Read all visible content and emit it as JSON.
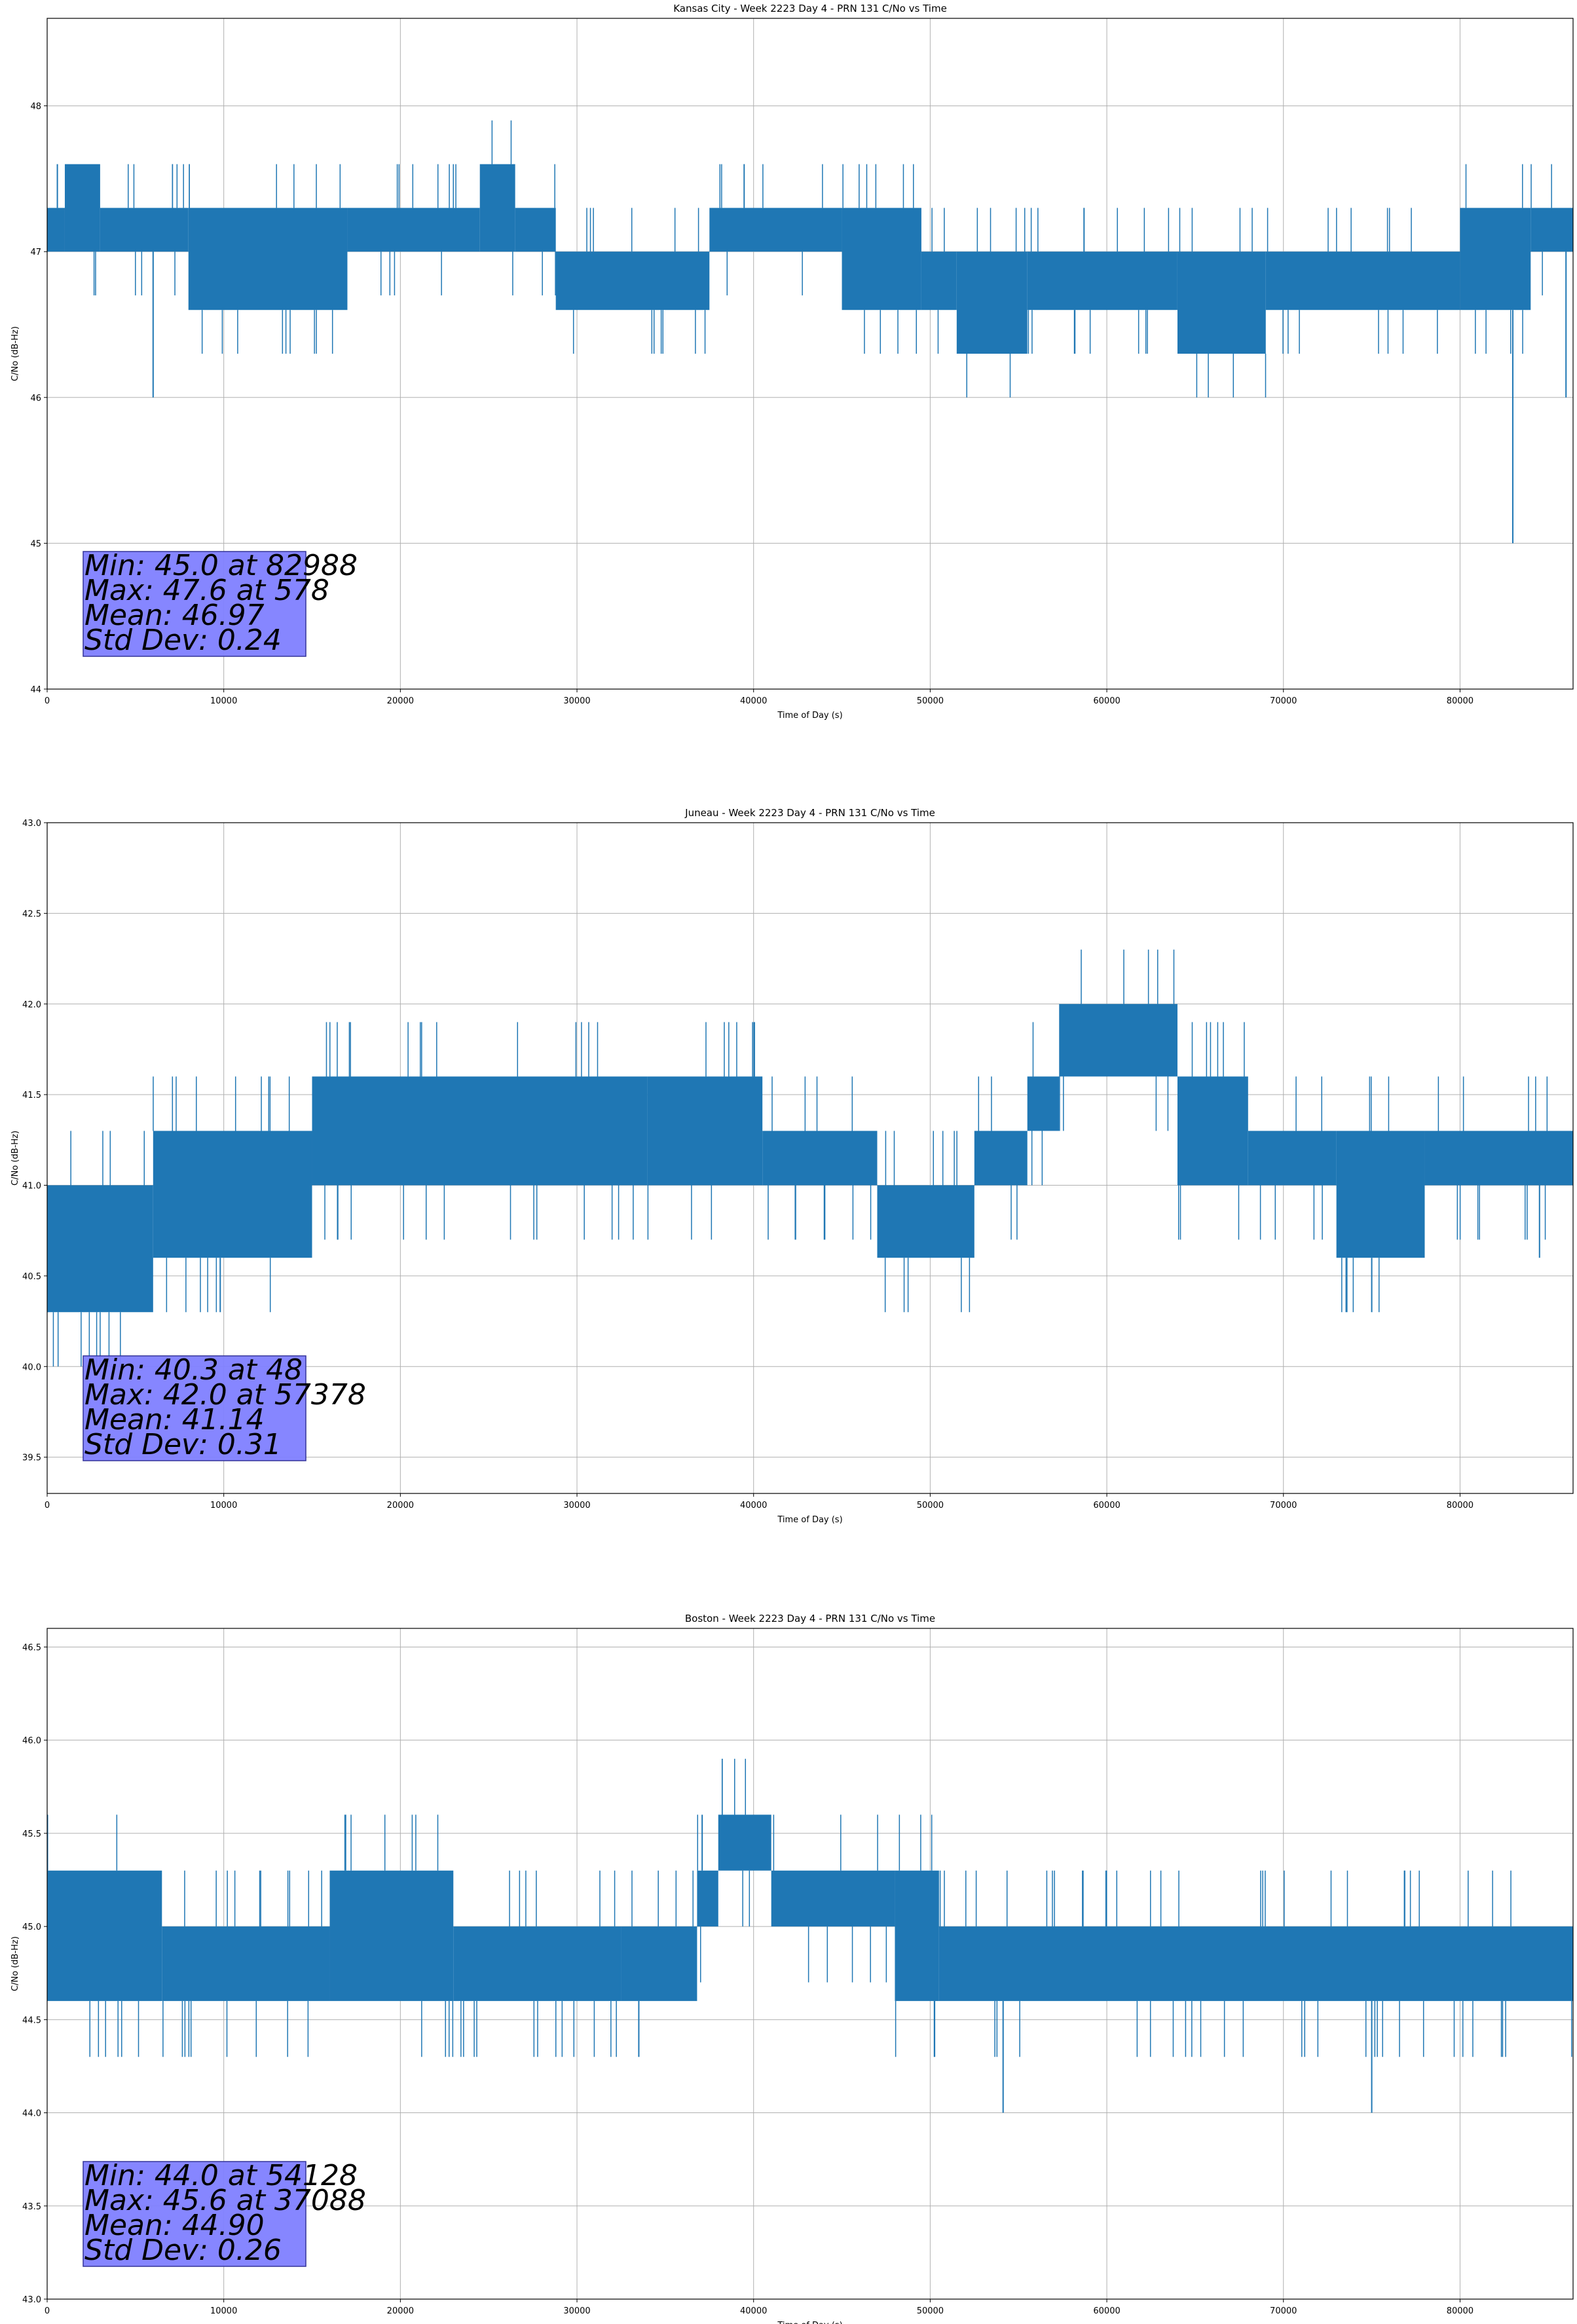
{
  "chart_data": [
    {
      "type": "line",
      "title": "Kansas City - Week 2223 Day 4 - PRN 131 C/No vs Time",
      "xlabel": "Time of Day (s)",
      "ylabel": "C/No (dB-Hz)",
      "xlim": [
        0,
        86400
      ],
      "ylim": [
        44,
        48.6
      ],
      "xticks": [
        0,
        10000,
        20000,
        30000,
        40000,
        50000,
        60000,
        70000,
        80000
      ],
      "yticks": [
        44,
        45,
        46,
        47,
        48
      ],
      "ytick_labels": [
        "44",
        "45",
        "46",
        "47",
        "48"
      ],
      "grid": true,
      "series_color": "#1f77b4",
      "stats_box_color": "#8080ff",
      "stats": [
        "Min: 45.0 at 82988",
        "Max: 47.6 at 578",
        "Mean: 46.97",
        "Std Dev: 0.24"
      ],
      "band_segments": [
        {
          "x": [
            0,
            1000
          ],
          "low": 47.0,
          "high": 47.3
        },
        {
          "x": [
            1000,
            3000
          ],
          "low": 47.0,
          "high": 47.6
        },
        {
          "x": [
            3000,
            8000
          ],
          "low": 47.0,
          "high": 47.3
        },
        {
          "x": [
            8000,
            17000
          ],
          "low": 46.6,
          "high": 47.3
        },
        {
          "x": [
            17000,
            24500
          ],
          "low": 47.0,
          "high": 47.3
        },
        {
          "x": [
            24500,
            26500
          ],
          "low": 47.0,
          "high": 47.6
        },
        {
          "x": [
            26500,
            28800
          ],
          "low": 47.0,
          "high": 47.3
        },
        {
          "x": [
            28800,
            37500
          ],
          "low": 46.6,
          "high": 47.0
        },
        {
          "x": [
            37500,
            45000
          ],
          "low": 47.0,
          "high": 47.3
        },
        {
          "x": [
            45000,
            49500
          ],
          "low": 46.6,
          "high": 47.3
        },
        {
          "x": [
            49500,
            51500
          ],
          "low": 46.6,
          "high": 47.0
        },
        {
          "x": [
            51500,
            55500
          ],
          "low": 46.3,
          "high": 47.0
        },
        {
          "x": [
            55500,
            64000
          ],
          "low": 46.6,
          "high": 47.0
        },
        {
          "x": [
            64000,
            69000
          ],
          "low": 46.3,
          "high": 47.0
        },
        {
          "x": [
            69000,
            80000
          ],
          "low": 46.6,
          "high": 47.0
        },
        {
          "x": [
            80000,
            84000
          ],
          "low": 46.6,
          "high": 47.3
        },
        {
          "x": [
            84000,
            86400
          ],
          "low": 47.0,
          "high": 47.3
        }
      ],
      "spikes": [
        {
          "x": 578,
          "y": 47.6
        },
        {
          "x": 6000,
          "y": 46.0
        },
        {
          "x": 82988,
          "y": 45.0
        },
        {
          "x": 86000,
          "y": 46.0
        }
      ]
    },
    {
      "type": "line",
      "title": "Juneau - Week 2223 Day 4 - PRN 131 C/No vs Time",
      "xlabel": "Time of Day (s)",
      "ylabel": "C/No (dB-Hz)",
      "xlim": [
        0,
        86400
      ],
      "ylim": [
        39.3,
        43.0
      ],
      "xticks": [
        0,
        10000,
        20000,
        30000,
        40000,
        50000,
        60000,
        70000,
        80000
      ],
      "yticks": [
        39.5,
        40.0,
        40.5,
        41.0,
        41.5,
        42.0,
        42.5,
        43.0
      ],
      "ytick_labels": [
        "39.5",
        "40.0",
        "40.5",
        "41.0",
        "41.5",
        "42.0",
        "42.5",
        "43.0"
      ],
      "grid": true,
      "series_color": "#1f77b4",
      "stats_box_color": "#8080ff",
      "stats": [
        "Min: 40.3 at 48",
        "Max: 42.0 at 57378",
        "Mean: 41.14",
        "Std Dev: 0.31"
      ],
      "band_segments": [
        {
          "x": [
            0,
            6000
          ],
          "low": 40.3,
          "high": 41.0
        },
        {
          "x": [
            6000,
            15000
          ],
          "low": 40.6,
          "high": 41.3
        },
        {
          "x": [
            15000,
            34000
          ],
          "low": 41.0,
          "high": 41.6
        },
        {
          "x": [
            34000,
            40500
          ],
          "low": 41.0,
          "high": 41.6
        },
        {
          "x": [
            40500,
            47000
          ],
          "low": 41.0,
          "high": 41.3
        },
        {
          "x": [
            47000,
            52500
          ],
          "low": 40.6,
          "high": 41.0
        },
        {
          "x": [
            52500,
            55500
          ],
          "low": 41.0,
          "high": 41.3
        },
        {
          "x": [
            55500,
            57300
          ],
          "low": 41.3,
          "high": 41.6
        },
        {
          "x": [
            57300,
            64000
          ],
          "low": 41.6,
          "high": 42.0
        },
        {
          "x": [
            64000,
            68000
          ],
          "low": 41.0,
          "high": 41.6
        },
        {
          "x": [
            68000,
            73000
          ],
          "low": 41.0,
          "high": 41.3
        },
        {
          "x": [
            73000,
            78000
          ],
          "low": 40.6,
          "high": 41.3
        },
        {
          "x": [
            78000,
            86400
          ],
          "low": 41.0,
          "high": 41.3
        }
      ],
      "spikes": [
        {
          "x": 48,
          "y": 40.3
        },
        {
          "x": 9800,
          "y": 40.3
        },
        {
          "x": 75000,
          "y": 40.3
        },
        {
          "x": 84500,
          "y": 40.6
        }
      ]
    },
    {
      "type": "line",
      "title": "Boston - Week 2223 Day 4 - PRN 131 C/No vs Time",
      "xlabel": "Time of Day (s)",
      "ylabel": "C/No (dB-Hz)",
      "xlim": [
        0,
        86400
      ],
      "ylim": [
        43.0,
        46.6
      ],
      "xticks": [
        0,
        10000,
        20000,
        30000,
        40000,
        50000,
        60000,
        70000,
        80000
      ],
      "yticks": [
        43.0,
        43.5,
        44.0,
        44.5,
        45.0,
        45.5,
        46.0,
        46.5
      ],
      "ytick_labels": [
        "43.0",
        "43.5",
        "44.0",
        "44.5",
        "45.0",
        "45.5",
        "46.0",
        "46.5"
      ],
      "grid": true,
      "series_color": "#1f77b4",
      "stats_box_color": "#8080ff",
      "stats": [
        "Min: 44.0 at 54128",
        "Max: 45.6 at 37088",
        "Mean: 44.90",
        "Std Dev: 0.26"
      ],
      "band_segments": [
        {
          "x": [
            0,
            6500
          ],
          "low": 44.6,
          "high": 45.3
        },
        {
          "x": [
            6500,
            16000
          ],
          "low": 44.6,
          "high": 45.0
        },
        {
          "x": [
            16000,
            23000
          ],
          "low": 44.6,
          "high": 45.3
        },
        {
          "x": [
            23000,
            32500
          ],
          "low": 44.6,
          "high": 45.0
        },
        {
          "x": [
            32500,
            36800
          ],
          "low": 44.6,
          "high": 45.0
        },
        {
          "x": [
            36800,
            38000
          ],
          "low": 45.0,
          "high": 45.3
        },
        {
          "x": [
            38000,
            41000
          ],
          "low": 45.3,
          "high": 45.6
        },
        {
          "x": [
            41000,
            48000
          ],
          "low": 45.0,
          "high": 45.3
        },
        {
          "x": [
            48000,
            50500
          ],
          "low": 44.6,
          "high": 45.3
        },
        {
          "x": [
            50500,
            86400
          ],
          "low": 44.6,
          "high": 45.0
        }
      ],
      "spikes": [
        {
          "x": 54128,
          "y": 44.0
        },
        {
          "x": 75000,
          "y": 44.0
        },
        {
          "x": 37088,
          "y": 45.6
        },
        {
          "x": 33500,
          "y": 44.3
        }
      ]
    }
  ]
}
